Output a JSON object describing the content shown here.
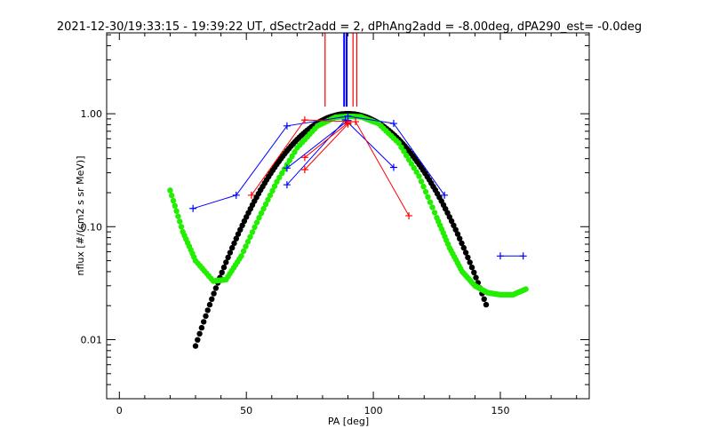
{
  "chart_data": {
    "type": "scatter",
    "title": "2021-12-30/19:33:15 - 19:39:22 UT, dSectr2add = 2, dPhAng2add = -8.00deg, dPA290_est=  -0.0deg",
    "xlabel": "PA [deg]",
    "ylabel": "nflux [#/(cm2 s sr MeV)]",
    "xlim": [
      -5,
      185
    ],
    "ylim": [
      0.003,
      5.2
    ],
    "yscale": "log",
    "x_ticks": [
      0,
      50,
      100,
      150
    ],
    "x_tick_labels": [
      "0",
      "50",
      "100",
      "150"
    ],
    "y_ticks": [
      0.01,
      0.1,
      1.0
    ],
    "y_tick_labels": [
      "0.01",
      "0.10",
      "1.00"
    ],
    "grid": false,
    "vertical_lines": [
      {
        "x": 81,
        "color": "#ff0000",
        "ymin": 1.0
      },
      {
        "x": 88.5,
        "color": "#0000ff",
        "ymin": 1.0
      },
      {
        "x": 89.5,
        "color": "#0000ff",
        "ymin": 1.0
      },
      {
        "x": 92,
        "color": "#ff0000",
        "ymin": 1.0
      },
      {
        "x": 93.5,
        "color": "#ff0000",
        "ymin": 1.0
      }
    ],
    "series": [
      {
        "id": "blue-1",
        "color": "#0000ff",
        "points": [
          [
            29,
            0.145
          ],
          [
            46,
            0.19
          ],
          [
            66,
            0.78
          ],
          [
            90,
            0.95
          ],
          [
            108,
            0.82
          ],
          [
            128,
            0.19
          ]
        ]
      },
      {
        "id": "blue-2",
        "color": "#0000ff",
        "points": [
          [
            66,
            0.235
          ],
          [
            89,
            0.88
          ],
          [
            108,
            0.335
          ]
        ]
      },
      {
        "id": "blue-3",
        "color": "#0000ff",
        "points": [
          [
            66,
            0.33
          ],
          [
            90,
            0.87
          ]
        ]
      },
      {
        "id": "blue-4",
        "color": "#0000ff",
        "points": [
          [
            150,
            0.055
          ],
          [
            159,
            0.055
          ]
        ]
      },
      {
        "id": "red-1",
        "color": "#ff0000",
        "points": [
          [
            52,
            0.19
          ],
          [
            73,
            0.88
          ],
          [
            93,
            0.85
          ],
          [
            114,
            0.125
          ]
        ]
      },
      {
        "id": "red-2",
        "color": "#ff0000",
        "points": [
          [
            73,
            0.41
          ],
          [
            90,
            0.83
          ]
        ]
      },
      {
        "id": "red-3",
        "color": "#ff0000",
        "points": [
          [
            73,
            0.32
          ],
          [
            90,
            0.81
          ]
        ]
      }
    ],
    "fits": [
      {
        "id": "black-fit",
        "color": "#000000",
        "type": "gaussian",
        "peak": 1.0,
        "center": 90,
        "sigma": 19.5,
        "xrange": [
          30,
          145
        ]
      },
      {
        "id": "green-fit",
        "color": "#22ee00",
        "type": "curve",
        "points": [
          [
            20,
            0.21
          ],
          [
            25,
            0.09
          ],
          [
            30,
            0.05
          ],
          [
            37,
            0.033
          ],
          [
            42,
            0.034
          ],
          [
            48,
            0.055
          ],
          [
            55,
            0.12
          ],
          [
            62,
            0.25
          ],
          [
            70,
            0.5
          ],
          [
            78,
            0.78
          ],
          [
            85,
            0.93
          ],
          [
            90,
            0.95
          ],
          [
            95,
            0.94
          ],
          [
            102,
            0.82
          ],
          [
            110,
            0.55
          ],
          [
            118,
            0.28
          ],
          [
            125,
            0.12
          ],
          [
            130,
            0.065
          ],
          [
            135,
            0.04
          ],
          [
            140,
            0.03
          ],
          [
            145,
            0.026
          ],
          [
            150,
            0.025
          ],
          [
            155,
            0.025
          ],
          [
            160,
            0.028
          ]
        ]
      }
    ]
  }
}
